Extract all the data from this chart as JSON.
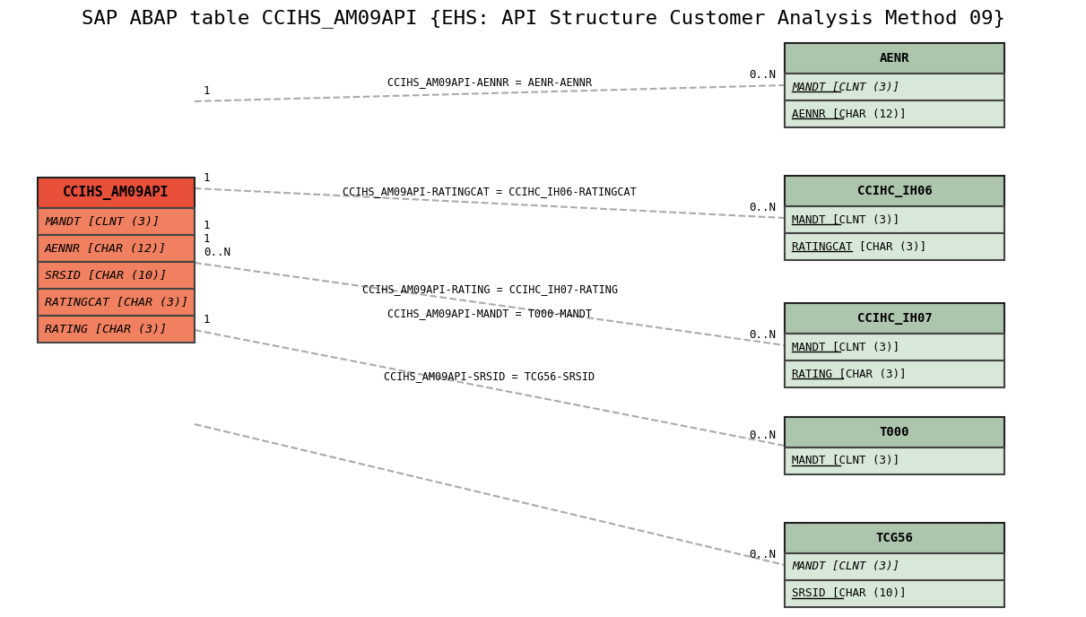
{
  "title": "SAP ABAP table CCIHS_AM09API {EHS: API Structure Customer Analysis Method 09}",
  "title_fontsize": 16,
  "bg_color": "#ffffff",
  "main_table": {
    "name": "CCIHS_AM09API",
    "header_color": "#e8503a",
    "row_color": "#f08060",
    "border_color": "#000000",
    "fields": [
      {
        "text": "MANDT [CLNT (3)]",
        "italic": true,
        "underline": false
      },
      {
        "text": "AENNR [CHAR (12)]",
        "italic": true,
        "underline": false
      },
      {
        "text": "SRSID [CHAR (10)]",
        "italic": true,
        "underline": false
      },
      {
        "text": "RATINGCAT [CHAR (3)]",
        "italic": true,
        "underline": false
      },
      {
        "text": "RATING [CHAR (3)]",
        "italic": true,
        "underline": false
      }
    ]
  },
  "related_tables": [
    {
      "name": "AENR",
      "header_color": "#adc4ad",
      "row_color": "#d8e8d8",
      "border_color": "#555555",
      "fields": [
        {
          "text": "MANDT [CLNT (3)]",
          "italic": true,
          "underline": true
        },
        {
          "text": "AENNR [CHAR (12)]",
          "italic": false,
          "underline": true
        }
      ],
      "conn_label": "CCIHS_AM09API-AENNR = AENR-AENNR",
      "left_card": "1",
      "right_card": "0..N"
    },
    {
      "name": "CCIHC_IH06",
      "header_color": "#adc4ad",
      "row_color": "#d8e8d8",
      "border_color": "#555555",
      "fields": [
        {
          "text": "MANDT [CLNT (3)]",
          "italic": false,
          "underline": true
        },
        {
          "text": "RATINGCAT [CHAR (3)]",
          "italic": false,
          "underline": true
        }
      ],
      "conn_label": "CCIHS_AM09API-RATINGCAT = CCIHC_IH06-RATINGCAT",
      "left_card": "1",
      "right_card": "0..N"
    },
    {
      "name": "CCIHC_IH07",
      "header_color": "#adc4ad",
      "row_color": "#d8e8d8",
      "border_color": "#555555",
      "fields": [
        {
          "text": "MANDT [CLNT (3)]",
          "italic": false,
          "underline": true
        },
        {
          "text": "RATING [CHAR (3)]",
          "italic": false,
          "underline": true
        }
      ],
      "conn_label_line1": "CCIHS_AM09API-RATING = CCIHC_IH07-RATING",
      "conn_label_line2": "CCIHS_AM09API-MANDT = T000-MANDT",
      "left_card": "1\n1\n0..N",
      "right_card": "0..N"
    },
    {
      "name": "T000",
      "header_color": "#adc4ad",
      "row_color": "#d8e8d8",
      "border_color": "#555555",
      "fields": [
        {
          "text": "MANDT [CLNT (3)]",
          "italic": false,
          "underline": true
        }
      ],
      "conn_label": "CCIHS_AM09API-SRSID = TCG56-SRSID",
      "left_card": "1",
      "right_card": "0..N"
    },
    {
      "name": "TCG56",
      "header_color": "#adc4ad",
      "row_color": "#d8e8d8",
      "border_color": "#555555",
      "fields": [
        {
          "text": "MANDT [CLNT (3)]",
          "italic": true,
          "underline": false
        },
        {
          "text": "SRSID [CHAR (10)]",
          "italic": false,
          "underline": true
        }
      ],
      "conn_label": "",
      "left_card": "",
      "right_card": "0..N"
    }
  ],
  "line_color": "#aaaaaa",
  "line_width": 1.5
}
